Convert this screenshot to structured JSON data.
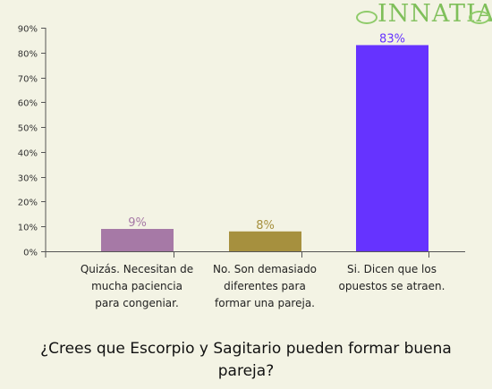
{
  "logo": {
    "text": "INNATIA",
    "color": "#7fbf5a"
  },
  "question": "¿Crees que Escorpio y Sagitario pueden formar buena pareja?",
  "chart_data": {
    "type": "bar",
    "title": "",
    "xlabel": "",
    "ylabel": "",
    "ylim": [
      0,
      90
    ],
    "yticks": [
      0,
      10,
      20,
      30,
      40,
      50,
      60,
      70,
      80,
      90
    ],
    "ytick_labels": [
      "0%",
      "10%",
      "20%",
      "30%",
      "40%",
      "50%",
      "60%",
      "70%",
      "80%",
      "90%"
    ],
    "categories": [
      "Quizás. Necesitan de mucha paciencia para congeniar.",
      "No. Son demasiado diferentes para formar una pareja.",
      "Si. Dicen que los opuestos se atraen."
    ],
    "values": [
      9,
      8,
      83
    ],
    "value_labels": [
      "9%",
      "8%",
      "83%"
    ],
    "colors": [
      "#a679a6",
      "#a6903e",
      "#6633ff"
    ],
    "grid": false,
    "legend": "none"
  }
}
